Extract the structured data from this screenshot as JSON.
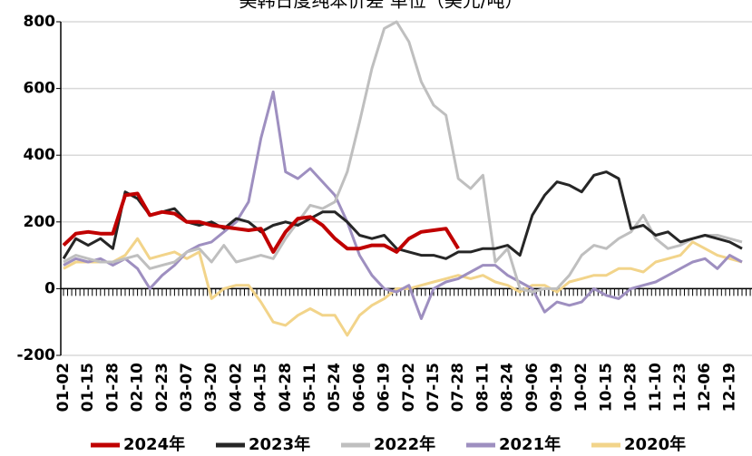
{
  "chart_data": {
    "type": "line",
    "title": "美韩日度纯苯价差 单位（美元/吨）",
    "categories": [
      "01-02",
      null,
      "01-15",
      null,
      "01-28",
      null,
      "02-10",
      null,
      "02-23",
      null,
      "03-07",
      null,
      "03-20",
      null,
      "04-02",
      null,
      "04-15",
      null,
      "04-28",
      null,
      "05-11",
      null,
      "05-24",
      null,
      "06-06",
      null,
      "06-19",
      null,
      "07-02",
      null,
      "07-15",
      null,
      "07-28",
      null,
      "08-11",
      null,
      "08-24",
      null,
      "09-06",
      null,
      "09-19",
      null,
      "10-02",
      null,
      "10-15",
      null,
      "10-28",
      null,
      "11-10",
      null,
      "11-23",
      null,
      "12-06",
      null,
      "12-19",
      null
    ],
    "ylim": [
      -200,
      800
    ],
    "yticks": [
      -200,
      0,
      200,
      400,
      600,
      800
    ],
    "grid": true,
    "series": [
      {
        "name": "2024年",
        "color": "#c00000",
        "values": [
          130,
          165,
          170,
          165,
          165,
          280,
          285,
          220,
          230,
          225,
          200,
          200,
          190,
          185,
          180,
          175,
          180,
          110,
          170,
          210,
          215,
          190,
          150,
          120,
          120,
          130,
          130,
          110,
          150,
          170,
          175,
          180,
          120,
          null,
          null,
          null,
          null,
          null,
          null,
          null,
          null,
          null,
          null,
          null,
          null,
          null,
          null,
          null,
          null,
          null,
          null,
          null,
          null,
          null,
          null,
          null
        ]
      },
      {
        "name": "2023年",
        "color": "#262626",
        "values": [
          90,
          150,
          130,
          150,
          120,
          290,
          270,
          220,
          230,
          240,
          200,
          190,
          200,
          180,
          210,
          200,
          170,
          190,
          200,
          190,
          210,
          230,
          230,
          200,
          160,
          150,
          160,
          120,
          110,
          100,
          100,
          90,
          110,
          110,
          120,
          120,
          130,
          100,
          220,
          280,
          320,
          310,
          290,
          340,
          350,
          330,
          180,
          190,
          160,
          170,
          140,
          150,
          160,
          150,
          140,
          120
        ]
      },
      {
        "name": "2022年",
        "color": "#bfbfbf",
        "values": [
          80,
          100,
          90,
          80,
          80,
          90,
          100,
          60,
          70,
          80,
          110,
          120,
          80,
          130,
          80,
          90,
          100,
          90,
          150,
          200,
          250,
          240,
          260,
          350,
          500,
          660,
          780,
          800,
          740,
          620,
          550,
          520,
          330,
          300,
          340,
          80,
          120,
          0,
          -10,
          0,
          0,
          40,
          100,
          130,
          120,
          150,
          170,
          220,
          150,
          120,
          130,
          150,
          160,
          160,
          150,
          140
        ]
      },
      {
        "name": "2021年",
        "color": "#9e8fc0",
        "values": [
          70,
          90,
          80,
          90,
          70,
          90,
          60,
          0,
          40,
          70,
          110,
          130,
          140,
          170,
          200,
          260,
          450,
          590,
          350,
          330,
          360,
          320,
          280,
          200,
          100,
          40,
          0,
          -10,
          10,
          -90,
          0,
          20,
          30,
          50,
          70,
          70,
          40,
          20,
          0,
          -70,
          -40,
          -50,
          -40,
          0,
          -20,
          -30,
          0,
          10,
          20,
          40,
          60,
          80,
          90,
          60,
          100,
          80
        ]
      },
      {
        "name": "2020年",
        "color": "#f2d48a",
        "values": [
          60,
          80,
          80,
          80,
          80,
          100,
          150,
          90,
          100,
          110,
          90,
          110,
          -30,
          0,
          10,
          10,
          -40,
          -100,
          -110,
          -80,
          -60,
          -80,
          -80,
          -140,
          -80,
          -50,
          -30,
          0,
          0,
          10,
          20,
          30,
          40,
          30,
          40,
          20,
          10,
          -10,
          10,
          10,
          -10,
          20,
          30,
          40,
          40,
          60,
          60,
          50,
          80,
          90,
          100,
          140,
          120,
          100,
          90,
          80
        ]
      }
    ]
  }
}
